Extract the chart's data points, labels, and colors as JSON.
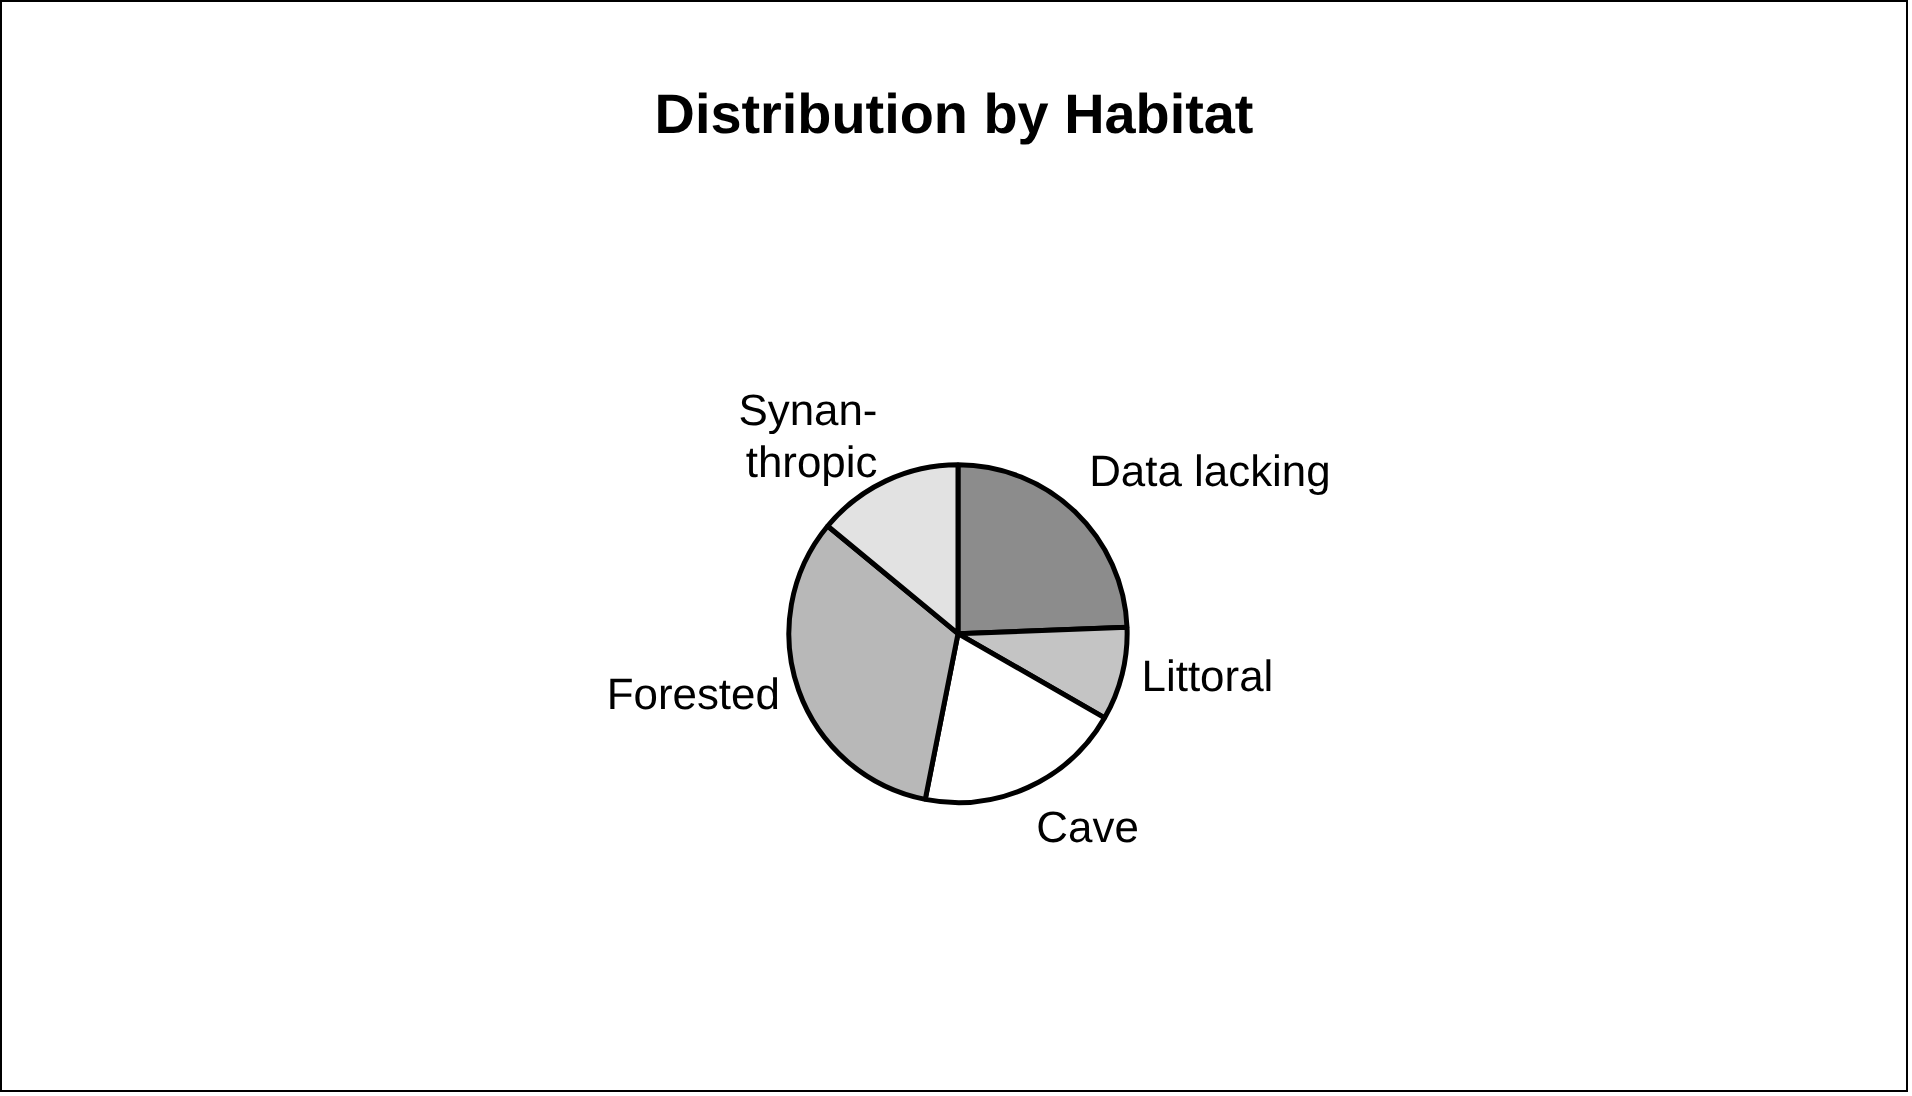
{
  "chart_data": {
    "type": "pie",
    "title": "Distribution by Habitat",
    "categories": [
      "Data lacking",
      "Littoral",
      "Cave",
      "Forested",
      "Synan-\nthropic"
    ],
    "values": [
      24.4,
      8.9,
      19.8,
      32.9,
      14.0
    ],
    "colors": [
      "#8c8c8c",
      "#c4c4c4",
      "#ffffff",
      "#b8b8b8",
      "#e2e2e2"
    ],
    "legend": false
  }
}
